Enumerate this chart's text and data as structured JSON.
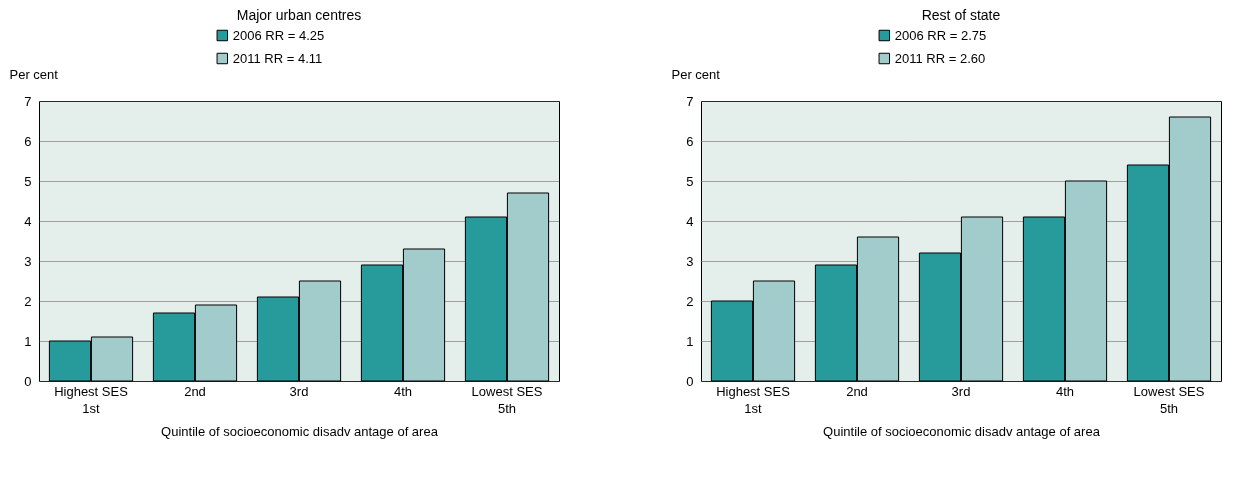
{
  "chart_data": [
    {
      "type": "bar",
      "title": "Major urban centres",
      "xlabel": "Quintile of socioeconomic disadv antage of area",
      "ylabel": "Per cent",
      "categories": [
        "Highest SES\n1st",
        "2nd",
        "3rd",
        "4th",
        "Lowest SES\n5th"
      ],
      "series": [
        {
          "name": "2006  RR = 4.25",
          "color": "#279a9c",
          "values": [
            1.0,
            1.7,
            2.1,
            2.9,
            4.1
          ]
        },
        {
          "name": "2011  RR = 4.11",
          "color": "#a2cccb",
          "values": [
            1.1,
            1.9,
            2.5,
            3.3,
            4.7
          ]
        }
      ],
      "ylim": [
        0,
        7
      ],
      "yticks": [
        0,
        1,
        2,
        3,
        4,
        5,
        6,
        7
      ],
      "grid": "y",
      "legend": "top"
    },
    {
      "type": "bar",
      "title": "Rest of state",
      "xlabel": "Quintile of socioeconomic disadv antage of area",
      "ylabel": "Per cent",
      "categories": [
        "Highest SES\n1st",
        "2nd",
        "3rd",
        "4th",
        "Lowest SES\n5th"
      ],
      "series": [
        {
          "name": "2006  RR = 2.75",
          "color": "#279a9c",
          "values": [
            2.0,
            2.9,
            3.2,
            4.1,
            5.4
          ]
        },
        {
          "name": "2011  RR = 2.60",
          "color": "#a2cccb",
          "values": [
            2.5,
            3.6,
            4.1,
            5.0,
            6.6
          ]
        }
      ],
      "ylim": [
        0,
        7
      ],
      "yticks": [
        0,
        1,
        2,
        3,
        4,
        5,
        6,
        7
      ],
      "grid": "y",
      "legend": "top"
    }
  ]
}
